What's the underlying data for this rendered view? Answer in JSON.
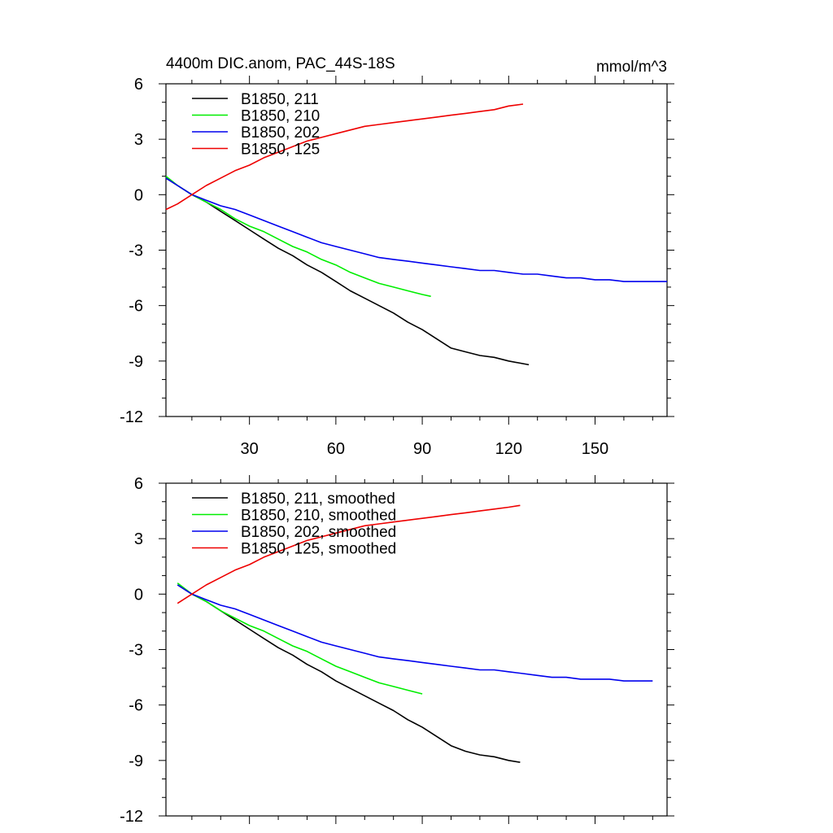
{
  "figure": {
    "title_left": "4400m DIC.anom, PAC_44S-18S",
    "title_right": "mmol/m^3"
  },
  "chart_data": [
    {
      "type": "line",
      "title": "4400m DIC.anom, PAC_44S-18S",
      "units": "mmol/m^3",
      "xlim": [
        1,
        175
      ],
      "ylim": [
        -12,
        6
      ],
      "x_ticks": [
        30,
        60,
        90,
        120,
        150
      ],
      "x_tick_labels": [
        "30",
        "60",
        "90",
        "120",
        "150"
      ],
      "y_ticks": [
        6,
        3,
        0,
        -3,
        -6,
        -9,
        -12
      ],
      "y_tick_labels": [
        "6",
        "3",
        "0",
        "-3",
        "-6",
        "-9",
        "-12"
      ],
      "legend_position": "top-left",
      "series": [
        {
          "name": "B1850, 211",
          "color": "#000000",
          "x": [
            1,
            5,
            10,
            15,
            20,
            25,
            30,
            35,
            40,
            45,
            50,
            55,
            60,
            65,
            70,
            75,
            80,
            85,
            90,
            95,
            100,
            105,
            110,
            115,
            120,
            127
          ],
          "y": [
            0.9,
            0.5,
            0.0,
            -0.4,
            -0.9,
            -1.4,
            -1.9,
            -2.4,
            -2.9,
            -3.3,
            -3.8,
            -4.2,
            -4.7,
            -5.2,
            -5.6,
            -6.0,
            -6.4,
            -6.9,
            -7.3,
            -7.8,
            -8.3,
            -8.5,
            -8.7,
            -8.8,
            -9.0,
            -9.2
          ]
        },
        {
          "name": "B1850, 210",
          "color": "#00ee00",
          "x": [
            1,
            5,
            10,
            15,
            20,
            25,
            30,
            35,
            40,
            45,
            50,
            55,
            60,
            65,
            70,
            75,
            80,
            85,
            90,
            93
          ],
          "y": [
            1.0,
            0.5,
            0.0,
            -0.4,
            -0.8,
            -1.3,
            -1.7,
            -2.0,
            -2.4,
            -2.8,
            -3.1,
            -3.5,
            -3.8,
            -4.2,
            -4.5,
            -4.8,
            -5.0,
            -5.2,
            -5.4,
            -5.5
          ]
        },
        {
          "name": "B1850, 202",
          "color": "#0000ee",
          "x": [
            1,
            5,
            10,
            15,
            20,
            25,
            30,
            35,
            40,
            45,
            50,
            55,
            60,
            65,
            70,
            75,
            80,
            85,
            90,
            95,
            100,
            105,
            110,
            115,
            120,
            125,
            130,
            135,
            140,
            145,
            150,
            155,
            160,
            165,
            170,
            175
          ],
          "y": [
            0.9,
            0.5,
            0.0,
            -0.3,
            -0.6,
            -0.8,
            -1.1,
            -1.4,
            -1.7,
            -2.0,
            -2.3,
            -2.6,
            -2.8,
            -3.0,
            -3.2,
            -3.4,
            -3.5,
            -3.6,
            -3.7,
            -3.8,
            -3.9,
            -4.0,
            -4.1,
            -4.1,
            -4.2,
            -4.3,
            -4.3,
            -4.4,
            -4.5,
            -4.5,
            -4.6,
            -4.6,
            -4.7,
            -4.7,
            -4.7,
            -4.7
          ]
        },
        {
          "name": "B1850, 125",
          "color": "#ee0000",
          "x": [
            1,
            5,
            10,
            15,
            20,
            25,
            30,
            35,
            40,
            45,
            50,
            55,
            60,
            65,
            70,
            75,
            80,
            85,
            90,
            95,
            100,
            105,
            110,
            115,
            120,
            125
          ],
          "y": [
            -0.8,
            -0.5,
            0.0,
            0.5,
            0.9,
            1.3,
            1.6,
            2.0,
            2.3,
            2.6,
            2.9,
            3.1,
            3.3,
            3.5,
            3.7,
            3.8,
            3.9,
            4.0,
            4.1,
            4.2,
            4.3,
            4.4,
            4.5,
            4.6,
            4.8,
            4.9
          ]
        }
      ]
    },
    {
      "type": "line",
      "xlim": [
        1,
        175
      ],
      "ylim": [
        -12,
        6
      ],
      "x_ticks": [
        30,
        60,
        90,
        120,
        150
      ],
      "x_tick_labels": [],
      "y_ticks": [
        6,
        3,
        0,
        -3,
        -6,
        -9,
        -12
      ],
      "y_tick_labels": [
        "6",
        "3",
        "0",
        "-3",
        "-6",
        "-9",
        "-12"
      ],
      "legend_position": "top-left",
      "series": [
        {
          "name": "B1850, 211, smoothed",
          "color": "#000000",
          "x": [
            5,
            10,
            15,
            20,
            25,
            30,
            35,
            40,
            45,
            50,
            55,
            60,
            65,
            70,
            75,
            80,
            85,
            90,
            95,
            100,
            105,
            110,
            115,
            120,
            124
          ],
          "y": [
            0.5,
            0.0,
            -0.4,
            -0.9,
            -1.4,
            -1.9,
            -2.4,
            -2.9,
            -3.3,
            -3.8,
            -4.2,
            -4.7,
            -5.1,
            -5.5,
            -5.9,
            -6.3,
            -6.8,
            -7.2,
            -7.7,
            -8.2,
            -8.5,
            -8.7,
            -8.8,
            -9.0,
            -9.1
          ]
        },
        {
          "name": "B1850, 210, smoothed",
          "color": "#00ee00",
          "x": [
            5,
            10,
            15,
            20,
            25,
            30,
            35,
            40,
            45,
            50,
            55,
            60,
            65,
            70,
            75,
            80,
            85,
            90
          ],
          "y": [
            0.6,
            0.0,
            -0.4,
            -0.9,
            -1.3,
            -1.7,
            -2.0,
            -2.4,
            -2.8,
            -3.1,
            -3.5,
            -3.9,
            -4.2,
            -4.5,
            -4.8,
            -5.0,
            -5.2,
            -5.4
          ]
        },
        {
          "name": "B1850, 202, smoothed",
          "color": "#0000ee",
          "x": [
            5,
            10,
            15,
            20,
            25,
            30,
            35,
            40,
            45,
            50,
            55,
            60,
            65,
            70,
            75,
            80,
            85,
            90,
            95,
            100,
            105,
            110,
            115,
            120,
            125,
            130,
            135,
            140,
            145,
            150,
            155,
            160,
            165,
            170
          ],
          "y": [
            0.5,
            0.0,
            -0.3,
            -0.6,
            -0.8,
            -1.1,
            -1.4,
            -1.7,
            -2.0,
            -2.3,
            -2.6,
            -2.8,
            -3.0,
            -3.2,
            -3.4,
            -3.5,
            -3.6,
            -3.7,
            -3.8,
            -3.9,
            -4.0,
            -4.1,
            -4.1,
            -4.2,
            -4.3,
            -4.4,
            -4.5,
            -4.5,
            -4.6,
            -4.6,
            -4.6,
            -4.7,
            -4.7,
            -4.7
          ]
        },
        {
          "name": "B1850, 125, smoothed",
          "color": "#ee0000",
          "x": [
            5,
            10,
            15,
            20,
            25,
            30,
            35,
            40,
            45,
            50,
            55,
            60,
            65,
            70,
            75,
            80,
            85,
            90,
            95,
            100,
            105,
            110,
            115,
            120,
            124
          ],
          "y": [
            -0.5,
            0.0,
            0.5,
            0.9,
            1.3,
            1.6,
            2.0,
            2.3,
            2.6,
            2.9,
            3.1,
            3.3,
            3.5,
            3.7,
            3.8,
            3.9,
            4.0,
            4.1,
            4.2,
            4.3,
            4.4,
            4.5,
            4.6,
            4.7,
            4.8
          ]
        }
      ]
    }
  ]
}
